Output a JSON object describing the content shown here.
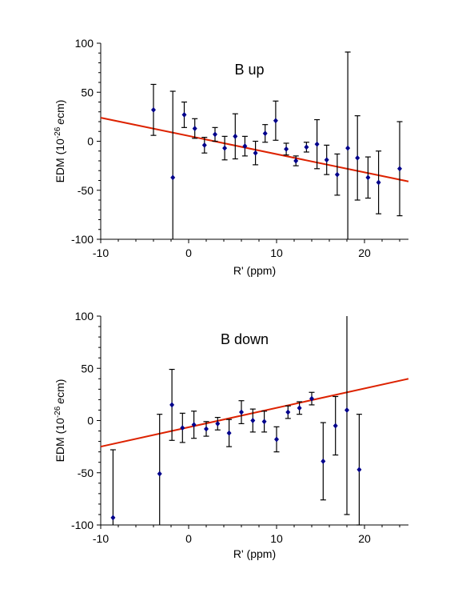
{
  "chart_data": [
    {
      "type": "scatter",
      "title": "B up",
      "xlabel": "R' (ppm)",
      "ylabel_main": "EDM (10",
      "ylabel_exp": "-26",
      "ylabel_unit": "ecm)",
      "xlim": [
        -10,
        25
      ],
      "ylim": [
        -100,
        100
      ],
      "xticks": [
        "-10",
        "0",
        "10",
        "20"
      ],
      "yticks": [
        "100",
        "50",
        "0",
        "-50",
        "-100"
      ],
      "grid": false,
      "legend": "none",
      "colors": {
        "points": "#00008b",
        "errorbars": "#000000",
        "fit": "#dd2200"
      },
      "points": [
        {
          "x": -4.0,
          "y": 32,
          "err": 26
        },
        {
          "x": -1.8,
          "y": -37,
          "err": 88
        },
        {
          "x": -0.5,
          "y": 27,
          "err": 13
        },
        {
          "x": 0.7,
          "y": 13,
          "err": 10
        },
        {
          "x": 1.8,
          "y": -4,
          "err": 8
        },
        {
          "x": 3.0,
          "y": 7,
          "err": 7
        },
        {
          "x": 4.1,
          "y": -7,
          "err": 12
        },
        {
          "x": 5.3,
          "y": 5,
          "err": 23
        },
        {
          "x": 6.4,
          "y": -5,
          "err": 10
        },
        {
          "x": 7.6,
          "y": -12,
          "err": 12
        },
        {
          "x": 8.7,
          "y": 8,
          "err": 9
        },
        {
          "x": 9.9,
          "y": 21,
          "err": 20
        },
        {
          "x": 11.1,
          "y": -8,
          "err": 6
        },
        {
          "x": 12.2,
          "y": -20,
          "err": 5
        },
        {
          "x": 13.4,
          "y": -6,
          "err": 5
        },
        {
          "x": 14.6,
          "y": -3,
          "err": 25
        },
        {
          "x": 15.7,
          "y": -19,
          "err": 15
        },
        {
          "x": 16.9,
          "y": -34,
          "err": 21
        },
        {
          "x": 18.1,
          "y": -7,
          "err": 98
        },
        {
          "x": 19.2,
          "y": -17,
          "err": 43
        },
        {
          "x": 20.4,
          "y": -37,
          "err": 21
        },
        {
          "x": 21.6,
          "y": -42,
          "err": 32
        },
        {
          "x": 24.0,
          "y": -28,
          "err": 48
        }
      ],
      "fit": {
        "x": [
          -10,
          25
        ],
        "y": [
          24,
          -41
        ]
      }
    },
    {
      "type": "scatter",
      "title": "B down",
      "xlabel": "R' (ppm)",
      "ylabel_main": "EDM (10",
      "ylabel_exp": "-26",
      "ylabel_unit": "ecm)",
      "xlim": [
        -10,
        25
      ],
      "ylim": [
        -100,
        100
      ],
      "xticks": [
        "-10",
        "0",
        "10",
        "20"
      ],
      "yticks": [
        "100",
        "50",
        "0",
        "-50",
        "-100"
      ],
      "grid": false,
      "legend": "none",
      "colors": {
        "points": "#00008b",
        "errorbars": "#000000",
        "fit": "#dd2200"
      },
      "points": [
        {
          "x": -8.6,
          "y": -93,
          "err": 65
        },
        {
          "x": -3.3,
          "y": -51,
          "err": 57
        },
        {
          "x": -1.9,
          "y": 15,
          "err": 34
        },
        {
          "x": -0.7,
          "y": -7,
          "err": 14
        },
        {
          "x": 0.6,
          "y": -4,
          "err": 13
        },
        {
          "x": 2.0,
          "y": -8,
          "err": 7
        },
        {
          "x": 3.3,
          "y": -3,
          "err": 6
        },
        {
          "x": 4.6,
          "y": -12,
          "err": 13
        },
        {
          "x": 6.0,
          "y": 8,
          "err": 11
        },
        {
          "x": 7.3,
          "y": 0,
          "err": 11
        },
        {
          "x": 8.6,
          "y": -1,
          "err": 10
        },
        {
          "x": 10.0,
          "y": -18,
          "err": 12
        },
        {
          "x": 11.3,
          "y": 8,
          "err": 6
        },
        {
          "x": 12.6,
          "y": 12,
          "err": 6
        },
        {
          "x": 14.0,
          "y": 21,
          "err": 6
        },
        {
          "x": 15.3,
          "y": -39,
          "err": 37
        },
        {
          "x": 16.7,
          "y": -5,
          "err": 28
        },
        {
          "x": 18.0,
          "y": 10,
          "err": 100
        },
        {
          "x": 19.4,
          "y": -47,
          "err": 53
        }
      ],
      "fit": {
        "x": [
          -10,
          25
        ],
        "y": [
          -25,
          40
        ]
      }
    }
  ]
}
